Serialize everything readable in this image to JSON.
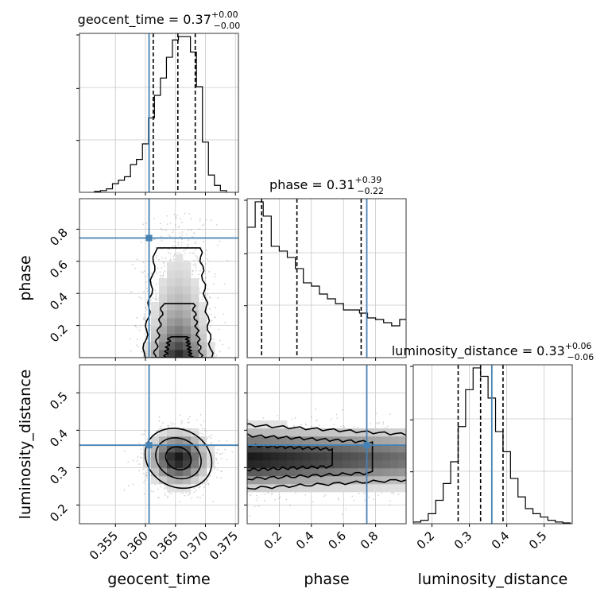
{
  "chart_data": {
    "type": "corner",
    "parameters": [
      "geocent_time",
      "phase",
      "luminosity_distance"
    ],
    "truths": [
      0.3606,
      0.745,
      0.36
    ],
    "titles": [
      {
        "param": "geocent_time",
        "prefix": "geocent_time = 0.37",
        "plus": "+0.00",
        "minus": "−0.00"
      },
      {
        "param": "phase",
        "prefix": "phase = 0.31",
        "plus": "+0.39",
        "minus": "−0.22"
      },
      {
        "param": "luminosity_distance",
        "prefix": "luminosity_distance = 0.33",
        "plus": "+0.06",
        "minus": "−0.06"
      }
    ],
    "axes": [
      {
        "param": "geocent_time",
        "xlim": [
          0.349,
          0.3755
        ],
        "ticks": [
          0.355,
          0.36,
          0.365,
          0.37,
          0.375
        ],
        "tick_labels": [
          "0.355",
          "0.360",
          "0.365",
          "0.370",
          "0.375"
        ],
        "xlabel": "geocent_time"
      },
      {
        "param": "phase",
        "xlim": [
          0.0,
          0.99
        ],
        "ticks": [
          0.2,
          0.4,
          0.6,
          0.8
        ],
        "tick_labels": [
          "0.2",
          "0.4",
          "0.6",
          "0.8"
        ],
        "xlabel": "phase"
      },
      {
        "param": "luminosity_distance",
        "xlim": [
          0.15,
          0.575
        ],
        "ticks": [
          0.2,
          0.3,
          0.4,
          0.5
        ],
        "tick_labels": [
          "0.2",
          "0.3",
          "0.4",
          "0.5"
        ],
        "xlabel": "luminosity_distance"
      }
    ],
    "ylabels": [
      "phase",
      "luminosity_distance"
    ],
    "quantiles": [
      [
        0.3613,
        0.3654,
        0.3683
      ],
      [
        0.09,
        0.31,
        0.71
      ],
      [
        0.27,
        0.33,
        0.39
      ]
    ],
    "histograms": [
      {
        "param": "geocent_time",
        "bin_edges": [
          0.3515,
          0.3525,
          0.3535,
          0.3545,
          0.3555,
          0.3565,
          0.3575,
          0.3585,
          0.3595,
          0.3605,
          0.3615,
          0.3625,
          0.3635,
          0.3645,
          0.3655,
          0.3665,
          0.3675,
          0.3685,
          0.3695,
          0.3705,
          0.3715,
          0.3725,
          0.3735
        ],
        "counts": [
          0.5,
          1,
          2,
          5,
          7,
          9,
          16,
          19,
          28,
          43,
          56,
          66,
          78,
          88,
          90,
          90,
          81,
          61,
          29,
          10,
          4,
          1
        ]
      },
      {
        "param": "phase",
        "bin_edges": [
          0.0,
          0.05,
          0.1,
          0.15,
          0.2,
          0.25,
          0.3,
          0.35,
          0.4,
          0.45,
          0.5,
          0.55,
          0.6,
          0.65,
          0.7,
          0.75,
          0.8,
          0.85,
          0.9,
          0.95,
          1.0
        ],
        "counts": [
          82,
          98,
          89,
          70,
          67,
          63,
          56,
          47,
          45,
          40,
          37,
          34,
          30,
          30,
          28,
          25,
          24,
          22,
          20,
          24
        ]
      },
      {
        "param": "luminosity_distance",
        "bin_edges": [
          0.15,
          0.17,
          0.19,
          0.21,
          0.23,
          0.25,
          0.27,
          0.29,
          0.31,
          0.33,
          0.35,
          0.37,
          0.39,
          0.41,
          0.43,
          0.45,
          0.47,
          0.49,
          0.51,
          0.53,
          0.55,
          0.57
        ],
        "counts": [
          1,
          2,
          6,
          14,
          24,
          37,
          58,
          80,
          93,
          88,
          75,
          55,
          43,
          27,
          16,
          9,
          6,
          4,
          2,
          1,
          0.5
        ]
      }
    ],
    "pair_densities": [
      {
        "x": "geocent_time",
        "y": "phase",
        "x_center": 0.3655,
        "x_sigma": 0.0028,
        "y_decay": 0.3
      },
      {
        "x": "geocent_time",
        "y": "luminosity_distance",
        "x_center": 0.3655,
        "x_sigma": 0.0028,
        "y_center": 0.325,
        "y_sigma": 0.04
      },
      {
        "x": "phase",
        "y": "luminosity_distance",
        "y_center": 0.325,
        "y_sigma": 0.045
      }
    ],
    "grid": true
  }
}
